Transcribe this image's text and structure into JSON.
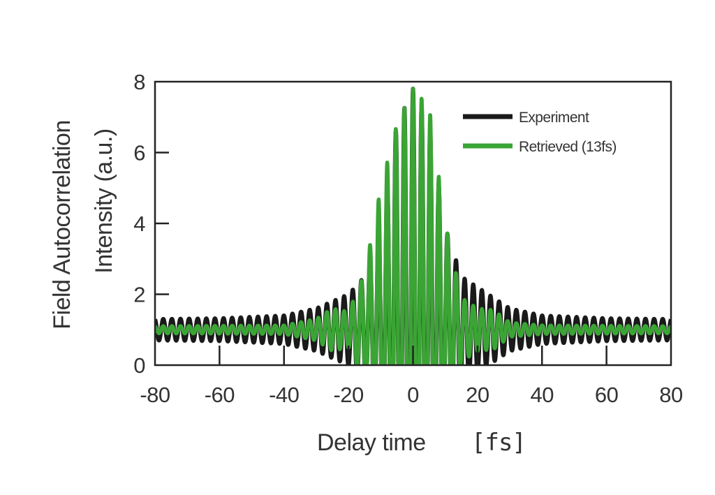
{
  "chart_data": {
    "type": "line",
    "title": "",
    "xlabel": "Delay time",
    "xlabel_unit": "[fs]",
    "ylabel_line1": "Field Autocorrelation",
    "ylabel_line2": "Intensity (a.u.)",
    "xlim": [
      -80,
      80
    ],
    "ylim": [
      0,
      8
    ],
    "x_ticks": [
      -80,
      -60,
      -40,
      -20,
      0,
      20,
      40,
      60,
      80
    ],
    "x_tick_labels": [
      "-80",
      "-60",
      "-40",
      "-20",
      "0",
      "20",
      "40",
      "60",
      "80"
    ],
    "y_ticks": [
      0,
      2,
      4,
      6,
      8
    ],
    "y_tick_labels": [
      "0",
      "2",
      "4",
      "6",
      "8"
    ],
    "grid": false,
    "legend_position": "top-right",
    "series": [
      {
        "name": "Experiment",
        "color": "#1a1a1a",
        "x": [
          -80,
          -60,
          -40,
          -30,
          -20,
          -15,
          -10,
          -5,
          0,
          5,
          10,
          15,
          20,
          30,
          40,
          60,
          80
        ],
        "envelope": [
          0.3,
          0.32,
          0.4,
          0.6,
          1.0,
          1.5,
          2.9,
          5.8,
          6.8,
          5.8,
          2.9,
          1.5,
          1.2,
          0.6,
          0.4,
          0.32,
          0.3
        ],
        "baseline": 1.0,
        "period_fs": 2.67
      },
      {
        "name": "Retrieved (13fs)",
        "color": "#3aa534",
        "x": [
          -80,
          -40,
          -30,
          -25,
          -20,
          -15,
          -10,
          -5,
          0,
          5,
          10,
          15,
          20,
          25,
          30,
          40,
          80
        ],
        "envelope": [
          0.1,
          0.12,
          0.3,
          0.6,
          0.5,
          1.6,
          4.0,
          5.8,
          6.8,
          6.3,
          3.0,
          0.9,
          0.6,
          0.55,
          0.2,
          0.12,
          0.1
        ],
        "baseline": 1.0,
        "period_fs": 2.67
      }
    ]
  }
}
